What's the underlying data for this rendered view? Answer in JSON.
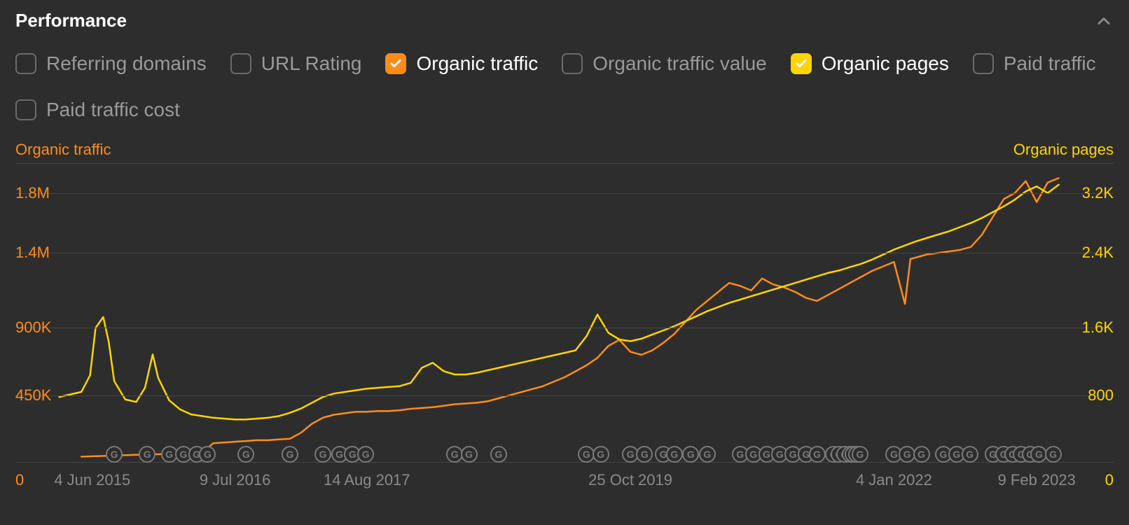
{
  "panel": {
    "title": "Performance"
  },
  "filters": [
    {
      "id": "referring-domains",
      "label": "Referring domains",
      "checked": false,
      "color": "#6a6a6a"
    },
    {
      "id": "url-rating",
      "label": "URL Rating",
      "checked": false,
      "color": "#6a6a6a"
    },
    {
      "id": "organic-traffic",
      "label": "Organic traffic",
      "checked": true,
      "color": "#ff8c1a"
    },
    {
      "id": "organic-traffic-value",
      "label": "Organic traffic value",
      "checked": false,
      "color": "#6a6a6a"
    },
    {
      "id": "organic-pages",
      "label": "Organic pages",
      "checked": true,
      "color": "#ffd500"
    },
    {
      "id": "paid-traffic",
      "label": "Paid traffic",
      "checked": false,
      "color": "#6a6a6a"
    },
    {
      "id": "paid-traffic-cost",
      "label": "Paid traffic cost",
      "checked": false,
      "color": "#6a6a6a"
    }
  ],
  "chart": {
    "type": "line",
    "background_color": "#2d2d2d",
    "grid_color": "#454545",
    "left_axis": {
      "title": "Organic traffic",
      "color": "#ff8c1a",
      "min": 0,
      "max": 2000000,
      "ticks": [
        {
          "value": 1800000,
          "label": "1.8M"
        },
        {
          "value": 1400000,
          "label": "1.4M"
        },
        {
          "value": 900000,
          "label": "900K"
        },
        {
          "value": 450000,
          "label": "450K"
        }
      ],
      "zero_label": "0"
    },
    "right_axis": {
      "title": "Organic pages",
      "color": "#ffd500",
      "min": 0,
      "max": 3600,
      "ticks": [
        {
          "value": 3200,
          "label": "3.2K"
        },
        {
          "value": 2400,
          "label": "2.4K"
        },
        {
          "value": 1600,
          "label": "1.6K"
        },
        {
          "value": 800,
          "label": "800"
        }
      ],
      "zero_label": "0"
    },
    "x_axis": {
      "min": 0,
      "max": 100,
      "ticks": [
        {
          "pos": 7,
          "label": "4 Jun 2015"
        },
        {
          "pos": 20,
          "label": "9 Jul 2016"
        },
        {
          "pos": 32,
          "label": "14 Aug 2017"
        },
        {
          "pos": 56,
          "label": "25 Oct 2019"
        },
        {
          "pos": 80,
          "label": "4 Jan 2022"
        },
        {
          "pos": 93,
          "label": "9 Feb 2023"
        }
      ]
    },
    "series": [
      {
        "name": "Organic traffic",
        "axis": "left",
        "color": "#ff8c1a",
        "line_width": 2.5,
        "points": [
          [
            6,
            40000
          ],
          [
            8,
            45000
          ],
          [
            10,
            50000
          ],
          [
            12,
            55000
          ],
          [
            14,
            58000
          ],
          [
            15,
            60000
          ],
          [
            16,
            60000
          ],
          [
            17,
            62000
          ],
          [
            18,
            130000
          ],
          [
            19,
            135000
          ],
          [
            20,
            140000
          ],
          [
            21,
            145000
          ],
          [
            22,
            150000
          ],
          [
            23,
            150000
          ],
          [
            24,
            155000
          ],
          [
            25,
            160000
          ],
          [
            26,
            200000
          ],
          [
            27,
            260000
          ],
          [
            28,
            300000
          ],
          [
            29,
            320000
          ],
          [
            30,
            330000
          ],
          [
            31,
            340000
          ],
          [
            32,
            340000
          ],
          [
            33,
            345000
          ],
          [
            34,
            345000
          ],
          [
            35,
            350000
          ],
          [
            36,
            360000
          ],
          [
            37,
            365000
          ],
          [
            38,
            370000
          ],
          [
            39,
            380000
          ],
          [
            40,
            390000
          ],
          [
            41,
            395000
          ],
          [
            42,
            400000
          ],
          [
            43,
            410000
          ],
          [
            44,
            430000
          ],
          [
            45,
            450000
          ],
          [
            46,
            470000
          ],
          [
            47,
            490000
          ],
          [
            48,
            510000
          ],
          [
            49,
            540000
          ],
          [
            50,
            570000
          ],
          [
            51,
            610000
          ],
          [
            52,
            650000
          ],
          [
            53,
            700000
          ],
          [
            54,
            780000
          ],
          [
            55,
            820000
          ],
          [
            56,
            740000
          ],
          [
            57,
            720000
          ],
          [
            58,
            750000
          ],
          [
            59,
            800000
          ],
          [
            60,
            860000
          ],
          [
            61,
            940000
          ],
          [
            62,
            1020000
          ],
          [
            63,
            1080000
          ],
          [
            64,
            1140000
          ],
          [
            65,
            1200000
          ],
          [
            66,
            1180000
          ],
          [
            67,
            1150000
          ],
          [
            68,
            1230000
          ],
          [
            69,
            1190000
          ],
          [
            70,
            1170000
          ],
          [
            71,
            1140000
          ],
          [
            72,
            1100000
          ],
          [
            73,
            1080000
          ],
          [
            74,
            1120000
          ],
          [
            75,
            1160000
          ],
          [
            76,
            1200000
          ],
          [
            77,
            1240000
          ],
          [
            78,
            1280000
          ],
          [
            79,
            1310000
          ],
          [
            80,
            1340000
          ],
          [
            81,
            1060000
          ],
          [
            81.5,
            1360000
          ],
          [
            82,
            1370000
          ],
          [
            83,
            1390000
          ],
          [
            84,
            1400000
          ],
          [
            85,
            1410000
          ],
          [
            86,
            1420000
          ],
          [
            87,
            1440000
          ],
          [
            88,
            1520000
          ],
          [
            89,
            1640000
          ],
          [
            90,
            1760000
          ],
          [
            91,
            1800000
          ],
          [
            92,
            1880000
          ],
          [
            93,
            1740000
          ],
          [
            94,
            1870000
          ],
          [
            95,
            1900000
          ]
        ]
      },
      {
        "name": "Organic pages",
        "axis": "right",
        "color": "#ffd500",
        "line_width": 2.5,
        "points": [
          [
            4,
            790
          ],
          [
            5,
            820
          ],
          [
            6,
            850
          ],
          [
            6.8,
            1050
          ],
          [
            7.3,
            1620
          ],
          [
            8,
            1750
          ],
          [
            8.5,
            1450
          ],
          [
            9,
            980
          ],
          [
            10,
            760
          ],
          [
            11,
            730
          ],
          [
            11.8,
            900
          ],
          [
            12.5,
            1300
          ],
          [
            13,
            1020
          ],
          [
            14,
            750
          ],
          [
            15,
            640
          ],
          [
            16,
            580
          ],
          [
            17,
            560
          ],
          [
            18,
            540
          ],
          [
            19,
            530
          ],
          [
            20,
            520
          ],
          [
            21,
            520
          ],
          [
            22,
            530
          ],
          [
            23,
            540
          ],
          [
            24,
            560
          ],
          [
            25,
            600
          ],
          [
            26,
            650
          ],
          [
            27,
            720
          ],
          [
            28,
            790
          ],
          [
            29,
            830
          ],
          [
            30,
            850
          ],
          [
            31,
            870
          ],
          [
            32,
            890
          ],
          [
            33,
            900
          ],
          [
            34,
            910
          ],
          [
            35,
            920
          ],
          [
            36,
            960
          ],
          [
            37,
            1140
          ],
          [
            38,
            1200
          ],
          [
            39,
            1100
          ],
          [
            40,
            1060
          ],
          [
            41,
            1060
          ],
          [
            42,
            1080
          ],
          [
            43,
            1110
          ],
          [
            44,
            1140
          ],
          [
            45,
            1170
          ],
          [
            46,
            1200
          ],
          [
            47,
            1230
          ],
          [
            48,
            1260
          ],
          [
            49,
            1290
          ],
          [
            50,
            1320
          ],
          [
            51,
            1350
          ],
          [
            52,
            1520
          ],
          [
            53,
            1780
          ],
          [
            54,
            1560
          ],
          [
            55,
            1480
          ],
          [
            56,
            1460
          ],
          [
            57,
            1490
          ],
          [
            58,
            1540
          ],
          [
            59,
            1590
          ],
          [
            60,
            1640
          ],
          [
            61,
            1700
          ],
          [
            62,
            1760
          ],
          [
            63,
            1820
          ],
          [
            64,
            1870
          ],
          [
            65,
            1920
          ],
          [
            66,
            1960
          ],
          [
            67,
            2000
          ],
          [
            68,
            2040
          ],
          [
            69,
            2080
          ],
          [
            70,
            2120
          ],
          [
            71,
            2160
          ],
          [
            72,
            2200
          ],
          [
            73,
            2240
          ],
          [
            74,
            2280
          ],
          [
            75,
            2310
          ],
          [
            76,
            2350
          ],
          [
            77,
            2390
          ],
          [
            78,
            2440
          ],
          [
            79,
            2500
          ],
          [
            80,
            2560
          ],
          [
            81,
            2610
          ],
          [
            82,
            2660
          ],
          [
            83,
            2700
          ],
          [
            84,
            2740
          ],
          [
            85,
            2780
          ],
          [
            86,
            2830
          ],
          [
            87,
            2880
          ],
          [
            88,
            2940
          ],
          [
            89,
            3010
          ],
          [
            90,
            3080
          ],
          [
            91,
            3160
          ],
          [
            92,
            3260
          ],
          [
            93,
            3320
          ],
          [
            94,
            3240
          ],
          [
            95,
            3340
          ]
        ]
      }
    ],
    "g_markers": [
      9,
      12,
      14,
      15.3,
      16.5,
      17.5,
      21,
      25,
      28,
      29.5,
      30.7,
      31.9,
      40,
      41.3,
      44,
      52,
      53.3,
      56,
      57.3,
      59,
      60,
      61.5,
      63,
      66,
      67.2,
      68.4,
      69.6,
      70.8,
      72,
      73,
      74.5,
      75,
      75.5,
      76,
      76.3,
      76.6,
      76.9,
      80,
      81.2,
      82.5,
      84.5,
      85.7,
      86.9,
      89,
      90,
      90.8,
      91.6,
      92.4,
      93.2,
      94.5
    ]
  }
}
